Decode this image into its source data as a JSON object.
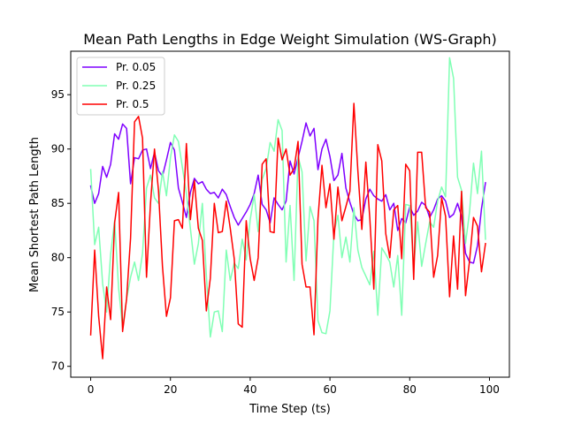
{
  "chart_data": {
    "type": "line",
    "title": "Mean Path Lengths in Edge Weight Simulation (WS-Graph)",
    "xlabel": "Time Step (ts)",
    "ylabel": "Mean Shortest Path Length",
    "xlim": [
      -5,
      105
    ],
    "ylim": [
      69,
      99
    ],
    "xticks": [
      0,
      20,
      40,
      60,
      80,
      100
    ],
    "yticks": [
      70,
      75,
      80,
      85,
      90,
      95
    ],
    "grid": false,
    "legend_position": "top-left",
    "series": [
      {
        "name": "Pr. 0.05",
        "color": "#7f00ff",
        "y": [
          86.6,
          85.0,
          85.9,
          88.4,
          87.4,
          88.6,
          91.4,
          90.9,
          92.3,
          91.9,
          86.8,
          89.2,
          89.1,
          89.9,
          90.0,
          88.2,
          89.7,
          88.0,
          87.5,
          89.0,
          90.6,
          89.9,
          86.4,
          85.1,
          83.7,
          86.0,
          87.3,
          86.8,
          87.0,
          86.3,
          85.9,
          86.0,
          85.5,
          86.3,
          85.8,
          84.7,
          83.7,
          83.0,
          83.6,
          84.2,
          84.9,
          85.9,
          87.6,
          84.9,
          84.4,
          83.2,
          85.5,
          84.9,
          84.4,
          85.2,
          88.9,
          87.7,
          89.2,
          90.7,
          92.4,
          91.2,
          91.9,
          88.1,
          90.0,
          90.9,
          89.3,
          87.1,
          87.6,
          89.6,
          86.4,
          85.1,
          84.0,
          83.4,
          83.5,
          85.4,
          86.3,
          85.7,
          85.4,
          85.2,
          85.8,
          84.4,
          85.0,
          82.5,
          83.6,
          83.2,
          84.7,
          83.9,
          84.3,
          85.1,
          84.8,
          83.7,
          84.4,
          85.4,
          85.7,
          85.2,
          83.7,
          84.0,
          85.0,
          83.8,
          80.4,
          79.6,
          79.5,
          81.1,
          84.5,
          86.9
        ]
      },
      {
        "name": "Pr. 0.25",
        "color": "#80ffb4",
        "y": [
          88.1,
          81.2,
          82.8,
          77.6,
          75.0,
          80.3,
          83.4,
          77.2,
          73.6,
          76.2,
          78.2,
          79.6,
          77.9,
          80.4,
          86.4,
          87.6,
          85.5,
          85.0,
          87.9,
          85.7,
          89.2,
          91.3,
          90.7,
          88.3,
          85.9,
          82.7,
          79.4,
          81.3,
          85.0,
          78.4,
          72.7,
          75.0,
          75.1,
          73.2,
          80.7,
          77.9,
          79.5,
          79.0,
          81.7,
          79.8,
          83.5,
          85.8,
          82.4,
          87.2,
          88.2,
          90.6,
          89.8,
          92.7,
          91.7,
          79.6,
          84.8,
          77.9,
          89.3,
          87.9,
          79.7,
          84.7,
          83.4,
          74.2,
          73.1,
          73.0,
          75.1,
          82.3,
          83.9,
          80.0,
          81.9,
          79.6,
          84.6,
          80.7,
          79.1,
          78.3,
          77.5,
          80.6,
          74.7,
          80.9,
          80.3,
          79.6,
          77.3,
          80.2,
          74.7,
          84.9,
          84.8,
          79.2,
          83.3,
          79.2,
          81.3,
          83.3,
          82.8,
          85.2,
          86.5,
          85.6,
          98.4,
          96.5,
          87.4,
          86.2,
          81.3,
          84.2,
          88.7,
          85.9,
          89.8,
          81.7
        ]
      },
      {
        "name": "Pr. 0.5",
        "color": "#ff0000",
        "y": [
          72.9,
          80.7,
          74.6,
          70.7,
          77.3,
          74.3,
          83.2,
          86.0,
          73.2,
          76.2,
          81.8,
          92.5,
          93.0,
          91.0,
          78.2,
          85.0,
          90.0,
          86.2,
          79.2,
          74.6,
          76.3,
          83.4,
          83.5,
          82.7,
          90.5,
          83.5,
          87.1,
          82.7,
          81.6,
          75.1,
          78.1,
          85.0,
          82.3,
          82.4,
          85.2,
          82.7,
          79.9,
          73.9,
          73.6,
          83.4,
          79.9,
          77.9,
          80.0,
          88.6,
          89.1,
          82.4,
          82.3,
          91.0,
          89.0,
          90.0,
          87.6,
          88.2,
          90.7,
          79.4,
          77.3,
          77.3,
          72.9,
          83.6,
          88.5,
          84.6,
          86.8,
          81.7,
          86.5,
          83.4,
          84.7,
          86.1,
          94.2,
          88.0,
          82.6,
          88.8,
          83.6,
          77.1,
          90.4,
          88.9,
          82.2,
          80.0,
          84.4,
          84.8,
          79.9,
          88.6,
          88.0,
          78.0,
          89.7,
          89.7,
          84.6,
          84.2,
          78.2,
          80.2,
          85.5,
          83.8,
          76.4,
          82.0,
          77.1,
          86.1,
          76.5,
          79.7,
          83.7,
          82.9,
          78.7,
          81.3
        ]
      }
    ]
  }
}
